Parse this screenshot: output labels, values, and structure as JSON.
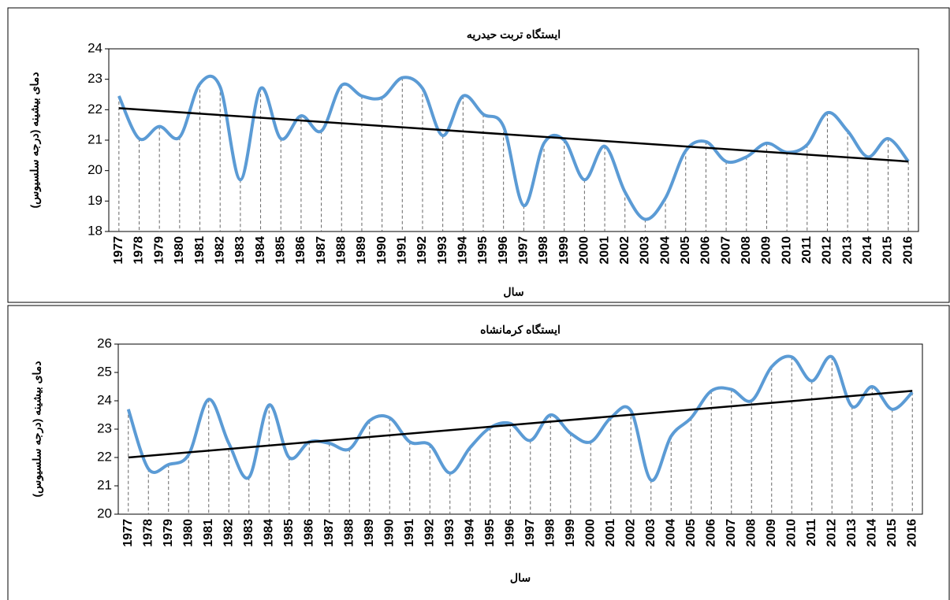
{
  "chart_data": [
    {
      "type": "line",
      "title": "ایستگاه تربت حیدریه",
      "x_label": "سال",
      "y_label": "دمای بیشینه (درجه سلسیوس)",
      "categories": [
        "1977",
        "1978",
        "1979",
        "1980",
        "1981",
        "1982",
        "1983",
        "1984",
        "1985",
        "1986",
        "1987",
        "1988",
        "1989",
        "1990",
        "1991",
        "1992",
        "1993",
        "1994",
        "1995",
        "1996",
        "1997",
        "1998",
        "1999",
        "2000",
        "2001",
        "2002",
        "2003",
        "2004",
        "2005",
        "2006",
        "2007",
        "2008",
        "2009",
        "2010",
        "2011",
        "2012",
        "2013",
        "2014",
        "2015",
        "2016"
      ],
      "series": [
        {
          "color": "#5b9bd5",
          "values": [
            22.45,
            21.05,
            21.45,
            21.1,
            22.85,
            22.75,
            19.7,
            22.7,
            21.05,
            21.8,
            21.3,
            22.8,
            22.45,
            22.4,
            23.05,
            22.7,
            21.15,
            22.45,
            21.85,
            21.45,
            18.85,
            20.9,
            21.0,
            19.7,
            20.8,
            19.3,
            18.4,
            19.1,
            20.65,
            20.95,
            20.3,
            20.45,
            20.9,
            20.6,
            20.85,
            21.9,
            21.3,
            20.45,
            21.05,
            20.3
          ]
        }
      ],
      "trendline": {
        "color": "#000000",
        "values": [
          22.05,
          20.3
        ]
      },
      "ylim": [
        18,
        24
      ],
      "yticks": [
        18,
        19,
        20,
        21,
        22,
        23,
        24
      ]
    },
    {
      "type": "line",
      "title": "ایستگاه کرمانشاه",
      "x_label": "سال",
      "y_label": "دمای بیشینه (درجه سلسیوس)",
      "categories": [
        "1977",
        "1978",
        "1979",
        "1980",
        "1981",
        "1982",
        "1983",
        "1984",
        "1985",
        "1986",
        "1987",
        "1988",
        "1989",
        "1990",
        "1991",
        "1992",
        "1993",
        "1994",
        "1995",
        "1996",
        "1997",
        "1998",
        "1999",
        "2000",
        "2001",
        "2002",
        "2003",
        "2004",
        "2005",
        "2006",
        "2007",
        "2008",
        "2009",
        "2010",
        "2011",
        "2012",
        "2013",
        "2014",
        "2015",
        "2016"
      ],
      "series": [
        {
          "color": "#5b9bd5",
          "values": [
            23.7,
            21.6,
            21.75,
            22.1,
            24.05,
            22.5,
            21.3,
            23.85,
            22.0,
            22.55,
            22.5,
            22.3,
            23.3,
            23.4,
            22.55,
            22.45,
            21.45,
            22.35,
            23.05,
            23.2,
            22.6,
            23.5,
            22.85,
            22.55,
            23.4,
            23.65,
            21.2,
            22.75,
            23.4,
            24.35,
            24.4,
            24.0,
            25.2,
            25.55,
            24.7,
            25.55,
            23.8,
            24.5,
            23.7,
            24.3
          ]
        }
      ],
      "trendline": {
        "color": "#000000",
        "values": [
          22.0,
          24.35
        ]
      },
      "ylim": [
        20,
        26
      ],
      "yticks": [
        20,
        21,
        22,
        23,
        24,
        25,
        26
      ]
    }
  ]
}
